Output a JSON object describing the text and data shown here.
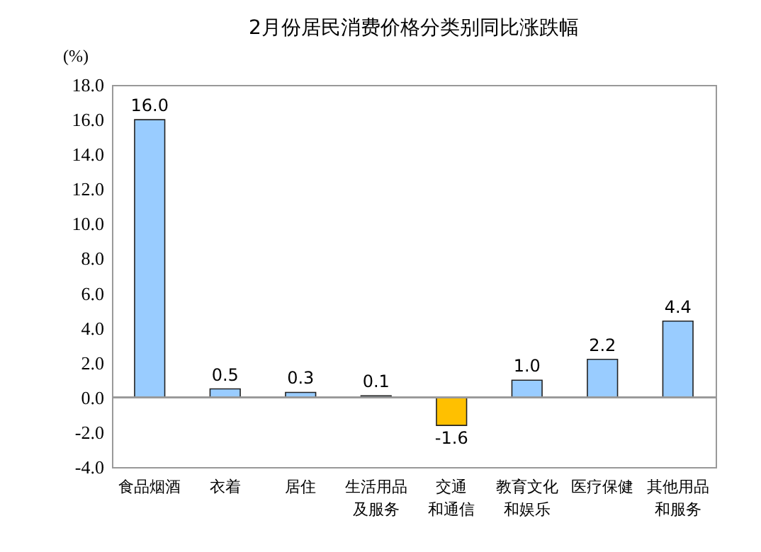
{
  "chart_data": {
    "type": "bar",
    "title": "2月份居民消费价格分类别同比涨跌幅",
    "ylabel": "(%)",
    "categories": [
      "食品烟酒",
      "衣着",
      "居住",
      "生活用品及服务",
      "交通和通信",
      "教育文化和娱乐",
      "医疗保健",
      "其他用品和服务"
    ],
    "values": [
      16.0,
      0.5,
      0.3,
      0.1,
      -1.6,
      1.0,
      2.2,
      4.4
    ],
    "value_labels": [
      "16.0",
      "0.5",
      "0.3",
      "0.1",
      "-1.6",
      "1.0",
      "2.2",
      "4.4"
    ],
    "colors": [
      "#99ccff",
      "#99ccff",
      "#99ccff",
      "#99ccff",
      "#ffc000",
      "#99ccff",
      "#99ccff",
      "#99ccff"
    ],
    "ylim": [
      -4,
      18
    ],
    "yticks": [
      {
        "value": -4,
        "label": "-4.0"
      },
      {
        "value": -2,
        "label": "-2.0"
      },
      {
        "value": 0,
        "label": "0.0"
      },
      {
        "value": 2,
        "label": "2.0"
      },
      {
        "value": 4,
        "label": "4.0"
      },
      {
        "value": 6,
        "label": "6.0"
      },
      {
        "value": 8,
        "label": "8.0"
      },
      {
        "value": 10,
        "label": "10.0"
      },
      {
        "value": 12,
        "label": "12.0"
      },
      {
        "value": 14,
        "label": "14.0"
      },
      {
        "value": 16,
        "label": "16.0"
      },
      {
        "value": 18,
        "label": "18.0"
      }
    ]
  }
}
